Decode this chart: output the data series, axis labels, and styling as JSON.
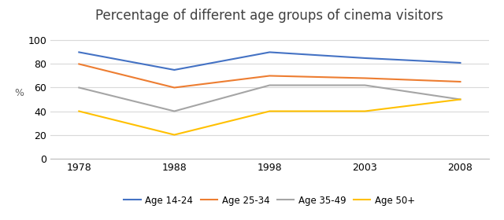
{
  "title": "Percentage of different age groups of cinema visitors",
  "ylabel": "%",
  "years": [
    1978,
    1988,
    1998,
    2003,
    2008
  ],
  "series": [
    {
      "label": "Age 14-24",
      "color": "#4472C4",
      "values": [
        90,
        75,
        90,
        85,
        81
      ]
    },
    {
      "label": "Age 25-34",
      "color": "#ED7D31",
      "values": [
        80,
        60,
        70,
        68,
        65
      ]
    },
    {
      "label": "Age 35-49",
      "color": "#A5A5A5",
      "values": [
        60,
        40,
        62,
        62,
        50
      ]
    },
    {
      "label": "Age 50+",
      "color": "#FFC000",
      "values": [
        40,
        20,
        40,
        40,
        50
      ]
    }
  ],
  "ylim": [
    0,
    110
  ],
  "yticks": [
    0,
    20,
    40,
    60,
    80,
    100
  ],
  "background_color": "#FFFFFF",
  "grid_color": "#D9D9D9",
  "title_fontsize": 12,
  "axis_label_fontsize": 9,
  "tick_fontsize": 9,
  "legend_fontsize": 8.5
}
